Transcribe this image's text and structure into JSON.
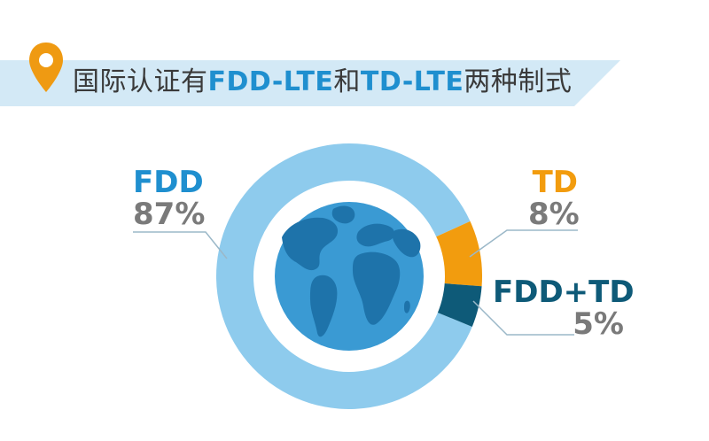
{
  "title": {
    "prefix": "国际认证有",
    "highlight1": "FDD-LTE",
    "middle": "和",
    "highlight2": "TD-LTE",
    "suffix": "两种制式"
  },
  "icons": {
    "marker": "location-pin-icon",
    "globe": "globe-icon"
  },
  "colors": {
    "banner": "#d3e9f6",
    "pin": "#ef9a12",
    "title_text": "#3a3a3a",
    "title_highlight": "#1f8fcf",
    "fdd": "#8ecbed",
    "td": "#f29c0e",
    "fdd_td": "#0e5a78",
    "globe_water": "#3a9ad3",
    "globe_land": "#1e73aa",
    "value_text": "#7a7a7a"
  },
  "chart_data": {
    "type": "pie",
    "donut": true,
    "categories": [
      "FDD",
      "TD",
      "FDD+TD"
    ],
    "values": [
      87,
      8,
      5
    ],
    "value_labels": [
      "87%",
      "8%",
      "5%"
    ],
    "colors": [
      "#8ecbed",
      "#f29c0e",
      "#0e5a78"
    ]
  }
}
